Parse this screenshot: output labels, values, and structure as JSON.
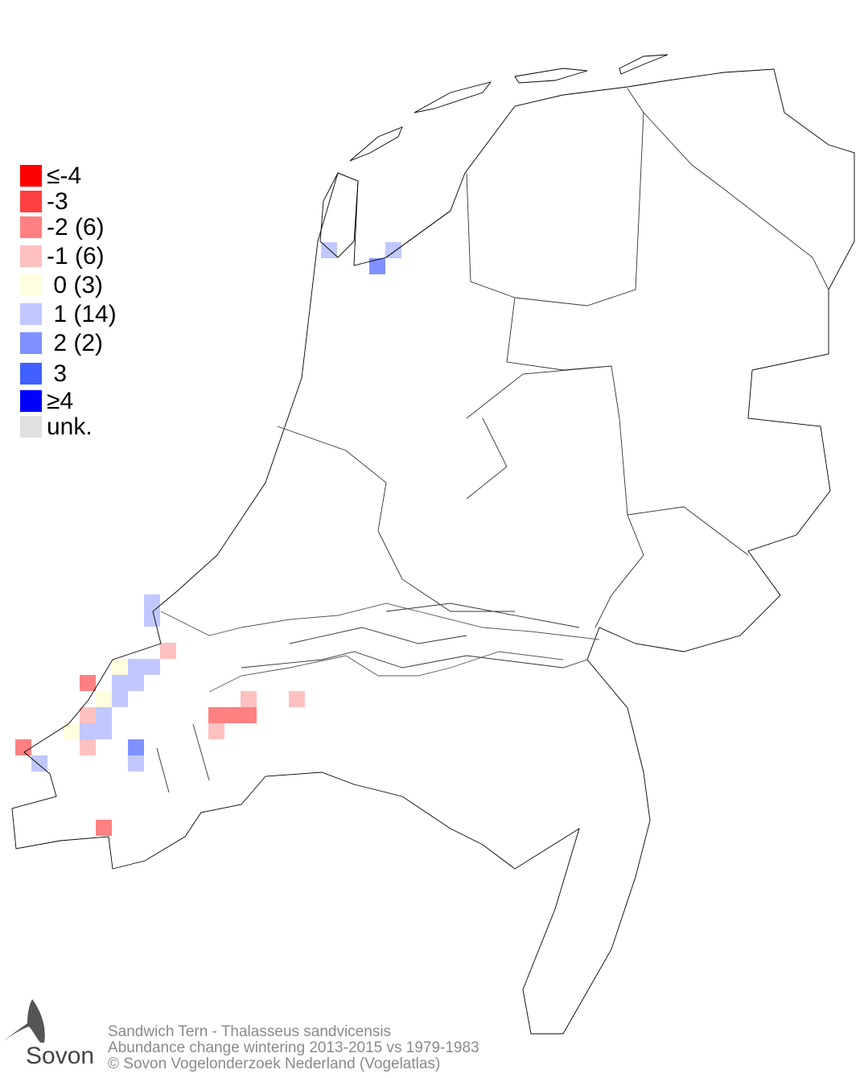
{
  "legend": {
    "items": [
      {
        "label": "≤-4",
        "color": "#ff0000"
      },
      {
        "label": "-3",
        "color": "#ff4040"
      },
      {
        "label": "-2 (6)",
        "color": "#ff8080"
      },
      {
        "label": "-1 (6)",
        "color": "#ffc0c0"
      },
      {
        "label": " 0 (3)",
        "color": "#ffffe0"
      },
      {
        "label": " 1 (14)",
        "color": "#c0c8ff"
      },
      {
        "label": " 2 (2)",
        "color": "#8090ff"
      },
      {
        "label": " 3",
        "color": "#4060ff"
      },
      {
        "label": "≥4",
        "color": "#0000ff"
      },
      {
        "label": "unk.",
        "color": "#e0e0e0"
      }
    ]
  },
  "footer": {
    "line1": "Sandwich Tern - Thalasseus sandvicensis",
    "line2": "Abundance change wintering  2013-2015 vs 1979-1983",
    "line3": "© Sovon Vogelonderzoek Nederland (Vogelatlas)"
  },
  "logo": {
    "text": "Sovon"
  }
}
